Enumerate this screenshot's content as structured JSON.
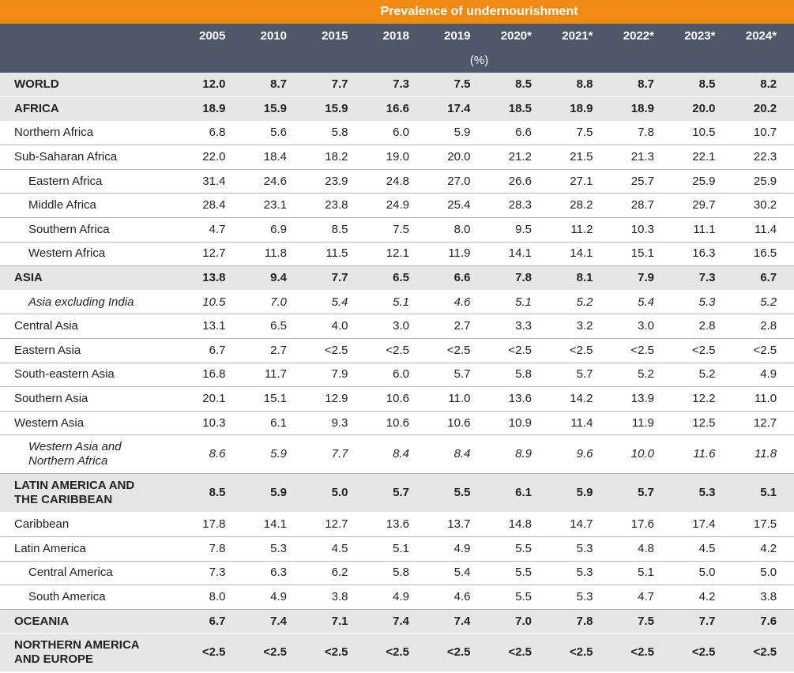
{
  "header": {
    "title": "Prevalence of undernourishment",
    "columns": [
      "2005",
      "2010",
      "2015",
      "2018",
      "2019",
      "2020*",
      "2021*",
      "2022*",
      "2023*",
      "2024*"
    ],
    "unit": "(%)"
  },
  "table": {
    "rows": [
      {
        "label": "WORLD",
        "values": [
          "12.0",
          "8.7",
          "7.7",
          "7.3",
          "7.5",
          "8.5",
          "8.8",
          "8.7",
          "8.5",
          "8.2"
        ]
      },
      {
        "label": "AFRICA",
        "values": [
          "18.9",
          "15.9",
          "15.9",
          "16.6",
          "17.4",
          "18.5",
          "18.9",
          "18.9",
          "20.0",
          "20.2"
        ]
      },
      {
        "label": "Northern Africa",
        "values": [
          "6.8",
          "5.6",
          "5.8",
          "6.0",
          "5.9",
          "6.6",
          "7.5",
          "7.8",
          "10.5",
          "10.7"
        ]
      },
      {
        "label": "Sub-Saharan Africa",
        "values": [
          "22.0",
          "18.4",
          "18.2",
          "19.0",
          "20.0",
          "21.2",
          "21.5",
          "21.3",
          "22.1",
          "22.3"
        ]
      },
      {
        "label": "Eastern Africa",
        "values": [
          "31.4",
          "24.6",
          "23.9",
          "24.8",
          "27.0",
          "26.6",
          "27.1",
          "25.7",
          "25.9",
          "25.9"
        ]
      },
      {
        "label": "Middle Africa",
        "values": [
          "28.4",
          "23.1",
          "23.8",
          "24.9",
          "25.4",
          "28.3",
          "28.2",
          "28.7",
          "29.7",
          "30.2"
        ]
      },
      {
        "label": "Southern Africa",
        "values": [
          "4.7",
          "6.9",
          "8.5",
          "7.5",
          "8.0",
          "9.5",
          "11.2",
          "10.3",
          "11.1",
          "11.4"
        ]
      },
      {
        "label": "Western Africa",
        "values": [
          "12.7",
          "11.8",
          "11.5",
          "12.1",
          "11.9",
          "14.1",
          "14.1",
          "15.1",
          "16.3",
          "16.5"
        ]
      },
      {
        "label": "ASIA",
        "values": [
          "13.8",
          "9.4",
          "7.7",
          "6.5",
          "6.6",
          "7.8",
          "8.1",
          "7.9",
          "7.3",
          "6.7"
        ]
      },
      {
        "label": "Asia excluding India",
        "values": [
          "10.5",
          "7.0",
          "5.4",
          "5.1",
          "4.6",
          "5.1",
          "5.2",
          "5.4",
          "5.3",
          "5.2"
        ]
      },
      {
        "label": "Central Asia",
        "values": [
          "13.1",
          "6.5",
          "4.0",
          "3.0",
          "2.7",
          "3.3",
          "3.2",
          "3.0",
          "2.8",
          "2.8"
        ]
      },
      {
        "label": "Eastern Asia",
        "values": [
          "6.7",
          "2.7",
          "<2.5",
          "<2.5",
          "<2.5",
          "<2.5",
          "<2.5",
          "<2.5",
          "<2.5",
          "<2.5"
        ]
      },
      {
        "label": "South-eastern Asia",
        "values": [
          "16.8",
          "11.7",
          "7.9",
          "6.0",
          "5.7",
          "5.8",
          "5.7",
          "5.2",
          "5.2",
          "4.9"
        ]
      },
      {
        "label": "Southern Asia",
        "values": [
          "20.1",
          "15.1",
          "12.9",
          "10.6",
          "11.0",
          "13.6",
          "14.2",
          "13.9",
          "12.2",
          "11.0"
        ]
      },
      {
        "label": "Western Asia",
        "values": [
          "10.3",
          "6.1",
          "9.3",
          "10.6",
          "10.6",
          "10.9",
          "11.4",
          "11.9",
          "12.5",
          "12.7"
        ]
      },
      {
        "label": "Western Asia and Northern Africa",
        "values": [
          "8.6",
          "5.9",
          "7.7",
          "8.4",
          "8.4",
          "8.9",
          "9.6",
          "10.0",
          "11.6",
          "11.8"
        ]
      },
      {
        "label": "LATIN AMERICA AND THE CARIBBEAN",
        "values": [
          "8.5",
          "5.9",
          "5.0",
          "5.7",
          "5.5",
          "6.1",
          "5.9",
          "5.7",
          "5.3",
          "5.1"
        ]
      },
      {
        "label": "Caribbean",
        "values": [
          "17.8",
          "14.1",
          "12.7",
          "13.6",
          "13.7",
          "14.8",
          "14.7",
          "17.6",
          "17.4",
          "17.5"
        ]
      },
      {
        "label": "Latin America",
        "values": [
          "7.8",
          "5.3",
          "4.5",
          "5.1",
          "4.9",
          "5.5",
          "5.3",
          "4.8",
          "4.5",
          "4.2"
        ]
      },
      {
        "label": "Central America",
        "values": [
          "7.3",
          "6.3",
          "6.2",
          "5.8",
          "5.4",
          "5.5",
          "5.3",
          "5.1",
          "5.0",
          "5.0"
        ]
      },
      {
        "label": "South America",
        "values": [
          "8.0",
          "4.9",
          "3.8",
          "4.9",
          "4.6",
          "5.5",
          "5.3",
          "4.7",
          "4.2",
          "3.8"
        ]
      },
      {
        "label": "OCEANIA",
        "values": [
          "6.7",
          "7.4",
          "7.1",
          "7.4",
          "7.4",
          "7.0",
          "7.8",
          "7.5",
          "7.7",
          "7.6"
        ]
      },
      {
        "label": "NORTHERN AMERICA AND EUROPE",
        "values": [
          "<2.5",
          "<2.5",
          "<2.5",
          "<2.5",
          "<2.5",
          "<2.5",
          "<2.5",
          "<2.5",
          "<2.5",
          "<2.5"
        ]
      }
    ]
  }
}
